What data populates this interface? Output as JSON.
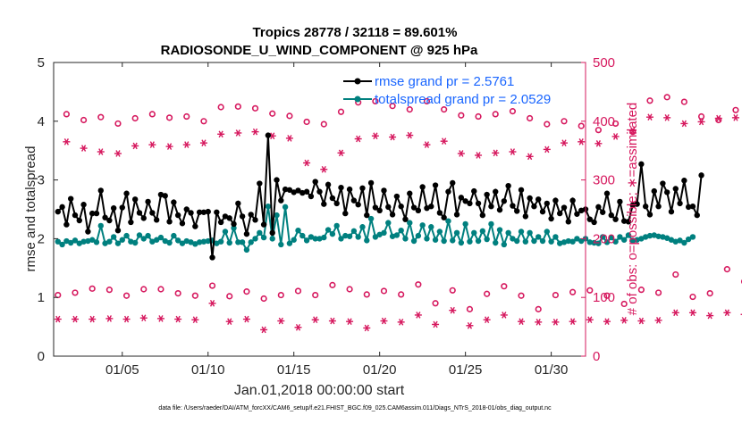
{
  "chart_data": {
    "type": "line",
    "title": "Tropics 28778 / 32118 = 89.601%",
    "subtitle": "RADIOSONDE_U_WIND_COMPONENT @ 925 hPa",
    "xlabel": "Jan.01,2018 00:00:00 start",
    "ylabel_left": "rmse and totalspread",
    "ylabel_right": "# of obs: o=possible; ∗=assimilated",
    "footer": "data file: /Users/raeder/DAI/ATM_forcXX/CAM6_setup/f.e21.FHIST_BGC.f09_025.CAM6assim.011/Diags_NTrS_2018-01/obs_diag_output.nc",
    "xlim": [
      1.0,
      32.0
    ],
    "ylim_left": [
      0,
      5
    ],
    "ylim_right": [
      0,
      500
    ],
    "x_ticks": [
      {
        "value": 5,
        "label": "01/05"
      },
      {
        "value": 10,
        "label": "01/10"
      },
      {
        "value": 15,
        "label": "01/15"
      },
      {
        "value": 20,
        "label": "01/20"
      },
      {
        "value": 25,
        "label": "01/25"
      },
      {
        "value": 30,
        "label": "01/30"
      }
    ],
    "y_ticks_left": [
      "0",
      "1",
      "2",
      "3",
      "4",
      "5"
    ],
    "y_ticks_right": [
      "0",
      "100",
      "200",
      "300",
      "400",
      "500"
    ],
    "legend": {
      "position": "top-right",
      "entries": [
        "rmse grand pr = 2.5761",
        "totalspread grand pr = 2.0529"
      ]
    },
    "colors": {
      "rmse": "#000000",
      "totalspread": "#00807f",
      "obs": "#d6185e",
      "right_axis": "#d6185e",
      "legend_text": "#1a66ff"
    },
    "x_start": 1.25,
    "x_step": 0.25,
    "series": [
      {
        "name": "rmse",
        "axis": "left",
        "marker": "dot",
        "values": [
          2.46,
          2.54,
          2.24,
          2.68,
          2.4,
          2.31,
          2.58,
          2.12,
          2.43,
          2.43,
          2.82,
          2.36,
          2.31,
          2.52,
          2.14,
          2.53,
          2.77,
          2.28,
          2.67,
          2.44,
          2.35,
          2.63,
          2.44,
          2.32,
          2.75,
          2.73,
          2.29,
          2.62,
          2.4,
          2.26,
          2.5,
          2.44,
          2.21,
          2.45,
          2.45,
          2.46,
          1.68,
          2.45,
          2.28,
          2.38,
          2.35,
          2.25,
          2.6,
          2.38,
          2.08,
          2.41,
          2.32,
          2.94,
          2.24,
          3.76,
          2.1,
          3.0,
          2.65,
          2.84,
          2.83,
          2.79,
          2.82,
          2.78,
          2.8,
          2.72,
          2.97,
          2.8,
          2.59,
          2.92,
          2.69,
          2.6,
          2.87,
          2.43,
          2.84,
          2.65,
          2.58,
          2.86,
          2.4,
          2.95,
          2.53,
          2.48,
          2.82,
          2.54,
          2.41,
          2.72,
          2.55,
          2.33,
          2.77,
          2.53,
          2.48,
          2.88,
          2.52,
          2.55,
          2.91,
          2.44,
          2.36,
          2.8,
          2.95,
          2.41,
          2.7,
          2.64,
          2.6,
          2.81,
          2.6,
          2.4,
          2.75,
          2.55,
          2.8,
          2.49,
          2.64,
          2.9,
          2.56,
          2.47,
          2.83,
          2.38,
          2.69,
          2.55,
          2.67,
          2.46,
          2.6,
          2.34,
          2.65,
          2.43,
          2.53,
          2.29,
          2.65,
          2.42,
          2.48,
          2.5,
          2.33,
          2.28,
          2.54,
          2.45,
          2.77,
          2.4,
          2.33,
          2.63,
          2.3,
          2.29,
          2.57,
          2.59,
          3.27,
          2.55,
          2.41,
          2.81,
          2.55,
          2.94,
          2.79,
          2.46,
          2.85,
          2.6,
          2.99,
          2.54,
          2.55,
          2.4,
          3.08
        ]
      },
      {
        "name": "totalspread",
        "axis": "left",
        "marker": "dot",
        "values": [
          1.95,
          1.9,
          1.96,
          1.93,
          1.97,
          1.92,
          1.95,
          1.96,
          1.98,
          1.94,
          2.22,
          1.92,
          1.95,
          2.03,
          1.92,
          1.98,
          2.05,
          1.95,
          1.93,
          2.06,
          2.0,
          2.05,
          1.95,
          1.98,
          2.02,
          1.96,
          1.93,
          2.05,
          1.97,
          1.92,
          1.96,
          1.94,
          1.91,
          1.94,
          1.95,
          1.96,
          1.97,
          1.92,
          1.95,
          2.12,
          1.93,
          2.18,
          1.94,
          1.94,
          1.81,
          1.94,
          2.0,
          2.1,
          2.02,
          2.55,
          2.0,
          2.4,
          1.9,
          2.54,
          1.92,
          1.98,
          2.14,
          2.05,
          1.97,
          2.03,
          2.0,
          2.0,
          2.02,
          2.15,
          2.08,
          2.22,
          2.0,
          2.05,
          2.04,
          2.13,
          2.03,
          2.2,
          1.97,
          2.34,
          2.03,
          2.07,
          2.1,
          2.27,
          2.04,
          2.06,
          2.14,
          2.0,
          2.27,
          1.96,
          2.05,
          2.23,
          2.0,
          2.2,
          1.98,
          2.12,
          1.96,
          2.3,
          1.97,
          2.1,
          1.93,
          2.25,
          1.95,
          2.1,
          1.96,
          2.13,
          1.99,
          2.25,
          1.93,
          2.15,
          1.9,
          2.1,
          2.0,
          1.96,
          2.12,
          1.95,
          2.1,
          1.96,
          2.03,
          1.96,
          2.12,
          1.95,
          2.03,
          1.92,
          1.94,
          1.96,
          1.95,
          2.0,
          1.96,
          2.0,
          1.94,
          1.93,
          1.92,
          2.03,
          1.94,
          2.02,
          1.95,
          2.03,
          1.98,
          2.06,
          1.97,
          1.98,
          2.0,
          2.03,
          2.05,
          2.06,
          2.04,
          2.03,
          2.01,
          1.98,
          1.95,
          1.97,
          1.93,
          1.99,
          2.03
        ]
      },
      {
        "name": "obs possible",
        "axis": "right",
        "marker": "circle",
        "period_hours": 12,
        "values": [
          104,
          412,
          108,
          402,
          115,
          407,
          113,
          396,
          103,
          405,
          114,
          412,
          114,
          406,
          107,
          408,
          103,
          400,
          120,
          424,
          102,
          425,
          110,
          422,
          98,
          413,
          104,
          409,
          111,
          399,
          104,
          395,
          121,
          416,
          114,
          432,
          105,
          434,
          111,
          426,
          105,
          420,
          122,
          434,
          90,
          420,
          112,
          410,
          80,
          408,
          106,
          412,
          119,
          417,
          103,
          405,
          80,
          395,
          104,
          400,
          109,
          392,
          112,
          385,
          103,
          396,
          89,
          382,
          113,
          435,
          108,
          441,
          139,
          433,
          101,
          408,
          107,
          402,
          148,
          419,
          127,
          425,
          120,
          425,
          118,
          417,
          117,
          402,
          99,
          424,
          104,
          428,
          116,
          437,
          118,
          437,
          121,
          418,
          106,
          445,
          110,
          459,
          121,
          457
        ]
      },
      {
        "name": "obs assimilated",
        "axis": "right",
        "marker": "asterisk",
        "values": [
          63,
          365,
          63,
          354,
          63,
          348,
          64,
          345,
          63,
          358,
          65,
          360,
          64,
          357,
          63,
          360,
          62,
          363,
          90,
          378,
          59,
          380,
          63,
          382,
          45,
          375,
          60,
          371,
          49,
          329,
          62,
          318,
          60,
          346,
          59,
          370,
          48,
          375,
          60,
          373,
          58,
          376,
          70,
          360,
          54,
          366,
          78,
          345,
          52,
          342,
          62,
          346,
          70,
          348,
          59,
          340,
          58,
          352,
          58,
          363,
          59,
          365,
          62,
          362,
          59,
          374,
          61,
          384,
          60,
          407,
          61,
          406,
          74,
          396,
          74,
          399,
          69,
          405,
          74,
          406,
          71,
          405,
          75,
          413,
          59,
          403,
          64,
          411,
          65,
          407,
          69,
          406,
          80,
          407,
          89,
          406,
          76,
          410,
          72,
          406,
          72,
          416
        ]
      }
    ]
  }
}
